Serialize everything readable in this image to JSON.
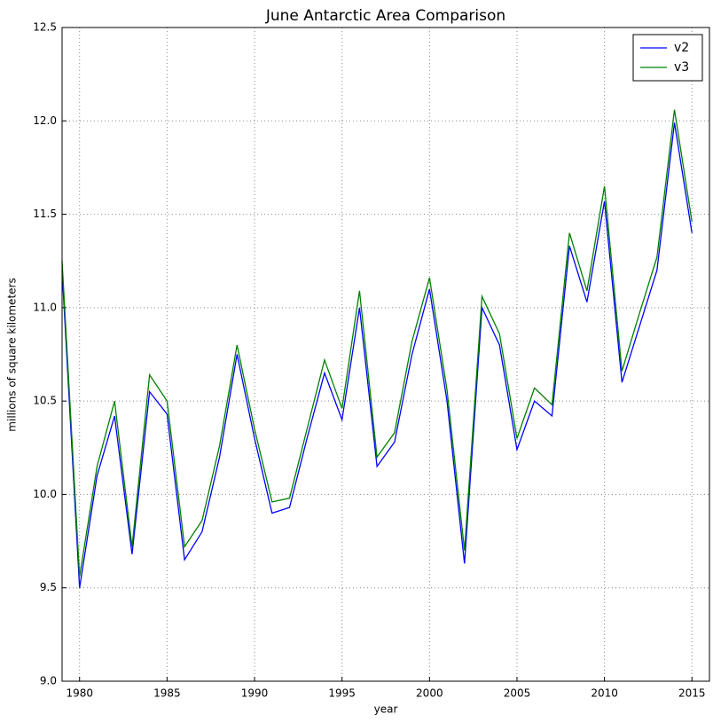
{
  "chart_data": {
    "type": "line",
    "title": "June Antarctic Area Comparison",
    "xlabel": "year",
    "ylabel": "millions of square kilometers",
    "x": [
      1979,
      1980,
      1981,
      1982,
      1983,
      1984,
      1985,
      1986,
      1987,
      1988,
      1989,
      1990,
      1991,
      1992,
      1993,
      1994,
      1995,
      1996,
      1997,
      1998,
      1999,
      2000,
      2001,
      2002,
      2003,
      2004,
      2005,
      2006,
      2007,
      2008,
      2009,
      2010,
      2011,
      2012,
      2013,
      2014,
      2015
    ],
    "series": [
      {
        "name": "v2",
        "color": "#0000ff",
        "values": [
          11.2,
          9.5,
          10.1,
          10.42,
          9.68,
          10.55,
          10.43,
          9.65,
          9.8,
          10.2,
          10.75,
          10.3,
          9.9,
          9.93,
          10.3,
          10.65,
          10.4,
          11.0,
          10.15,
          10.28,
          10.75,
          11.1,
          10.5,
          9.63,
          11.0,
          10.8,
          10.24,
          10.5,
          10.42,
          11.33,
          11.03,
          11.57,
          10.6,
          10.9,
          11.2,
          11.99,
          11.4
        ]
      },
      {
        "name": "v3",
        "color": "#008000",
        "values": [
          11.25,
          9.56,
          10.15,
          10.5,
          9.72,
          10.64,
          10.5,
          9.72,
          9.86,
          10.26,
          10.8,
          10.35,
          9.96,
          9.98,
          10.35,
          10.72,
          10.46,
          11.09,
          10.2,
          10.33,
          10.82,
          11.16,
          10.56,
          9.7,
          11.06,
          10.86,
          10.3,
          10.57,
          10.48,
          11.4,
          11.09,
          11.65,
          10.66,
          10.97,
          11.27,
          12.06,
          11.46
        ]
      }
    ],
    "xlim": [
      1979,
      2016
    ],
    "xticks": [
      1980,
      1985,
      1990,
      1995,
      2000,
      2005,
      2010,
      2015
    ],
    "ylim": [
      9,
      12.5
    ],
    "yticks": [
      {
        "value": 9,
        "label": "9.0"
      },
      9.5,
      {
        "value": 10,
        "label": "10.0"
      },
      10.5,
      {
        "value": 11,
        "label": "11.0"
      },
      11.5,
      {
        "value": 12,
        "label": "12.0"
      },
      12.5
    ],
    "grid": true,
    "legend": "upper right"
  }
}
